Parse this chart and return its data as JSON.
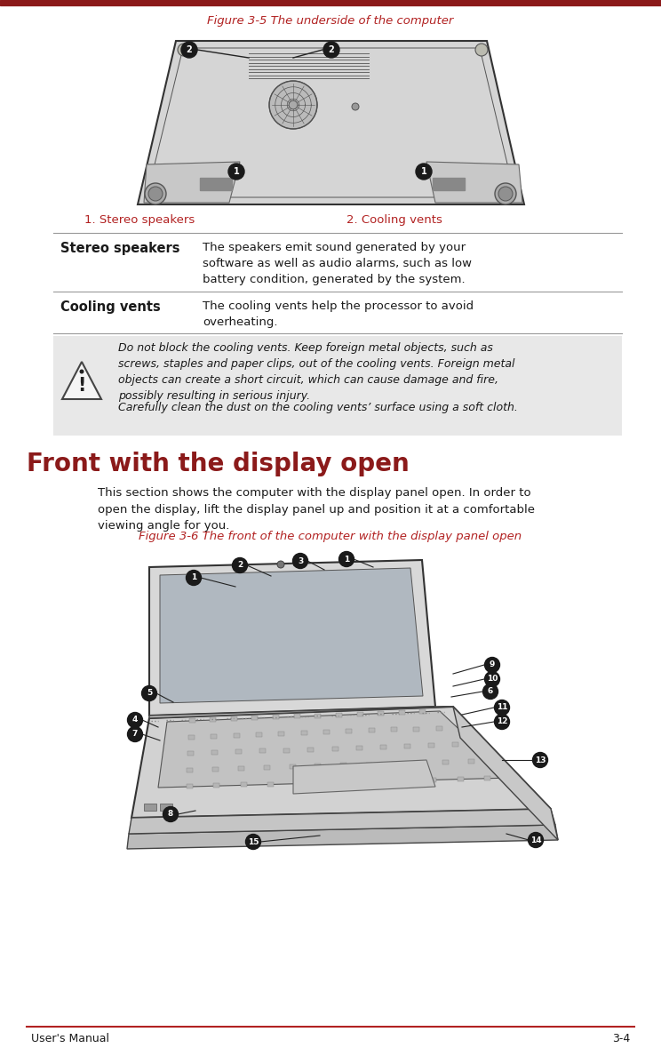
{
  "page_bg": "#ffffff",
  "top_bar_color": "#8b1a1a",
  "top_bar_height": 6,
  "title1": "Figure 3-5 The underside of the computer",
  "title1_color": "#b22222",
  "legend1": "1. Stereo speakers",
  "legend2": "2. Cooling vents",
  "legend_color": "#b22222",
  "table_header1": "Stereo speakers",
  "table_desc1": "The speakers emit sound generated by your\nsoftware as well as audio alarms, such as low\nbattery condition, generated by the system.",
  "table_header2": "Cooling vents",
  "table_desc2": "The cooling vents help the processor to avoid\noverheating.",
  "warning_text1": "Do not block the cooling vents. Keep foreign metal objects, such as\nscrews, staples and paper clips, out of the cooling vents. Foreign metal\nobjects can create a short circuit, which can cause damage and fire,\npossibly resulting in serious injury.",
  "warning_text2": "Carefully clean the dust on the cooling vents’ surface using a soft cloth.",
  "section_title": "Front with the display open",
  "section_title_color": "#8b1a1a",
  "section_body": "This section shows the computer with the display panel open. In order to\nopen the display, lift the display panel up and position it at a comfortable\nviewing angle for you.",
  "title2": "Figure 3-6 The front of the computer with the display panel open",
  "title2_color": "#b22222",
  "footer_left": "User's Manual",
  "footer_right": "3-4",
  "footer_line_color": "#b22222",
  "text_color": "#1a1a1a",
  "table_line_color": "#999999",
  "warning_bg": "#e8e8e8",
  "laptop_body_color": "#d0d0d0",
  "laptop_edge_color": "#333333",
  "screen_bg": "#c0c4c8",
  "callout_bg": "#1a1a1a"
}
